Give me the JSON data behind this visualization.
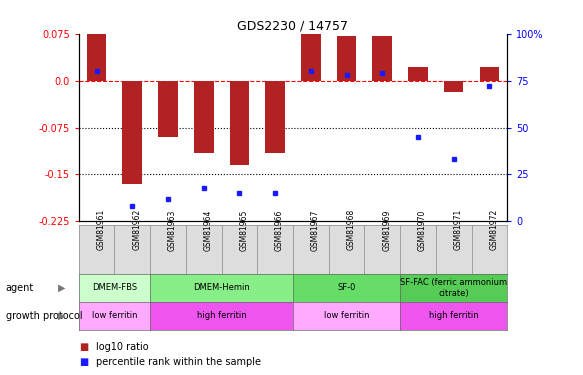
{
  "title": "GDS2230 / 14757",
  "samples": [
    "GSM81961",
    "GSM81962",
    "GSM81963",
    "GSM81964",
    "GSM81965",
    "GSM81966",
    "GSM81967",
    "GSM81968",
    "GSM81969",
    "GSM81970",
    "GSM81971",
    "GSM81972"
  ],
  "log10_ratio": [
    0.075,
    -0.165,
    -0.09,
    -0.115,
    -0.135,
    -0.115,
    0.075,
    0.072,
    0.072,
    0.022,
    -0.018,
    0.022
  ],
  "percentile_rank": [
    80,
    8,
    12,
    18,
    15,
    15,
    80,
    78,
    79,
    45,
    33,
    72
  ],
  "ylim": [
    -0.225,
    0.075
  ],
  "y_ticks_left": [
    0.075,
    0.0,
    -0.075,
    -0.15,
    -0.225
  ],
  "y_ticks_right": [
    100,
    75,
    50,
    25,
    0
  ],
  "bar_color": "#b22222",
  "dot_color": "#1a1aff",
  "agent_groups": [
    {
      "label": "DMEM-FBS",
      "start": 0,
      "end": 2,
      "color": "#ccffcc"
    },
    {
      "label": "DMEM-Hemin",
      "start": 2,
      "end": 6,
      "color": "#88ee88"
    },
    {
      "label": "SF-0",
      "start": 6,
      "end": 9,
      "color": "#66dd66"
    },
    {
      "label": "SF-FAC (ferric ammonium\ncitrate)",
      "start": 9,
      "end": 12,
      "color": "#55cc55"
    }
  ],
  "growth_groups": [
    {
      "label": "low ferritin",
      "start": 0,
      "end": 2,
      "color": "#ffaaff"
    },
    {
      "label": "high ferritin",
      "start": 2,
      "end": 6,
      "color": "#ee55ee"
    },
    {
      "label": "low ferritin",
      "start": 6,
      "end": 9,
      "color": "#ffaaff"
    },
    {
      "label": "high ferritin",
      "start": 9,
      "end": 12,
      "color": "#ee55ee"
    }
  ],
  "legend_bar_color": "#b22222",
  "legend_dot_color": "#1a1aff"
}
